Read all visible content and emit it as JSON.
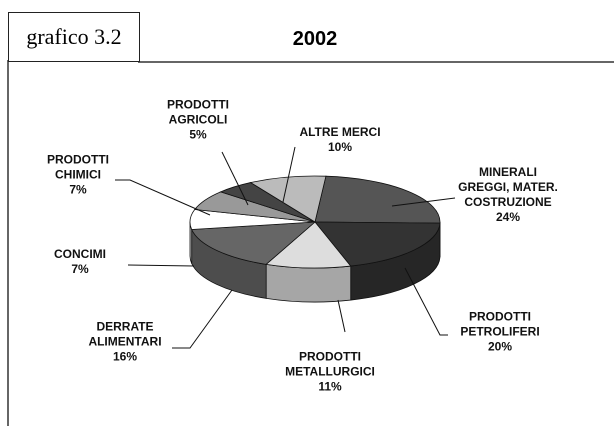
{
  "chart_data": {
    "type": "pie3d",
    "label": "grafico 3.2",
    "title": "2002",
    "categories": [
      "MINERALI GREGGI, MATER. COSTRUZIONE",
      "PRODOTTI PETROLIFERI",
      "PRODOTTI METALLURGICI",
      "DERRATE ALIMENTARI",
      "CONCIMI",
      "PRODOTTI CHIMICI",
      "PRODOTTI AGRICOLI",
      "ALTRE MERCI"
    ],
    "values": [
      24,
      20,
      11,
      16,
      7,
      7,
      5,
      10
    ],
    "value_labels": [
      "24%",
      "20%",
      "11%",
      "16%",
      "7%",
      "7%",
      "5%",
      "10%"
    ],
    "colors": [
      "#555555",
      "#333333",
      "#dddddd",
      "#666666",
      "#ffffff",
      "#999999",
      "#444444",
      "#bbbbbb"
    ]
  }
}
